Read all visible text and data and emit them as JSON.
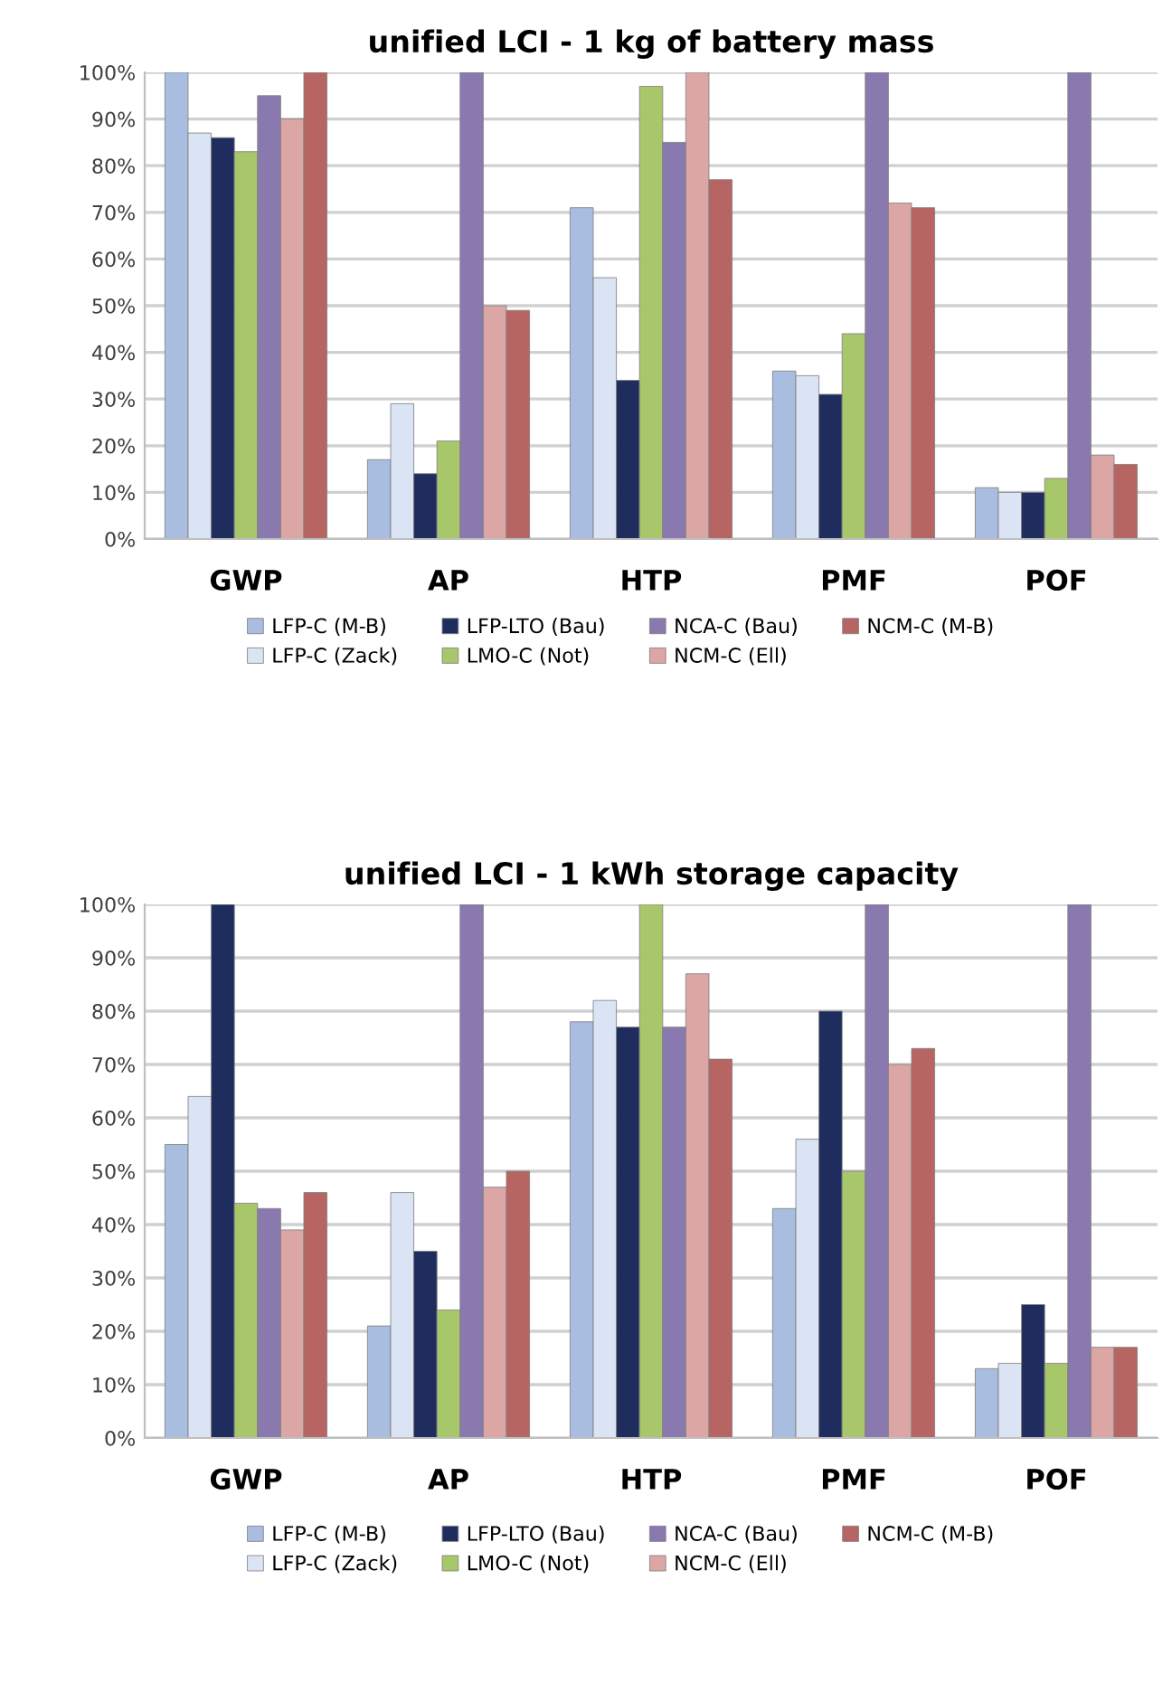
{
  "chart_data": [
    {
      "type": "bar",
      "title": "unified LCI - 1 kg of battery mass",
      "categories": [
        "GWP",
        "AP",
        "HTP",
        "PMF",
        "POF"
      ],
      "series": [
        {
          "name": "LFP-C (M-B)",
          "color": "#a9bde0",
          "values": [
            100,
            17,
            71,
            36,
            11
          ]
        },
        {
          "name": "LFP-C (Zack)",
          "color": "#dbe4f4",
          "values": [
            87,
            29,
            56,
            35,
            10
          ]
        },
        {
          "name": "LFP-LTO (Bau)",
          "color": "#1f2d5e",
          "values": [
            86,
            14,
            34,
            31,
            10
          ]
        },
        {
          "name": "LMO-C (Not)",
          "color": "#a8c66a",
          "values": [
            83,
            21,
            97,
            44,
            13
          ]
        },
        {
          "name": "NCA-C (Bau)",
          "color": "#8a79ae",
          "values": [
            95,
            100,
            85,
            100,
            100
          ]
        },
        {
          "name": "NCM-C (Ell)",
          "color": "#dba6a4",
          "values": [
            90,
            50,
            100,
            72,
            18
          ]
        },
        {
          "name": "NCM-C (M-B)",
          "color": "#b76563",
          "values": [
            100,
            49,
            77,
            71,
            16
          ]
        }
      ],
      "ylim": [
        0,
        100
      ],
      "yticks": [
        {
          "value": 0,
          "label": "0%"
        },
        {
          "value": 10,
          "label": "10%"
        },
        {
          "value": 20,
          "label": "20%"
        },
        {
          "value": 30,
          "label": "30%"
        },
        {
          "value": 40,
          "label": "40%"
        },
        {
          "value": 50,
          "label": "50%"
        },
        {
          "value": 60,
          "label": "60%"
        },
        {
          "value": 70,
          "label": "70%"
        },
        {
          "value": 80,
          "label": "80%"
        },
        {
          "value": 90,
          "label": "90%"
        },
        {
          "value": 100,
          "label": "100%"
        }
      ],
      "grid": "y",
      "legend": "bottom"
    },
    {
      "type": "bar",
      "title": "unified LCI - 1 kWh storage capacity",
      "categories": [
        "GWP",
        "AP",
        "HTP",
        "PMF",
        "POF"
      ],
      "series": [
        {
          "name": "LFP-C (M-B)",
          "color": "#a9bde0",
          "values": [
            55,
            21,
            78,
            43,
            13
          ]
        },
        {
          "name": "LFP-C (Zack)",
          "color": "#dbe4f4",
          "values": [
            64,
            46,
            82,
            56,
            14
          ]
        },
        {
          "name": "LFP-LTO (Bau)",
          "color": "#1f2d5e",
          "values": [
            100,
            35,
            77,
            80,
            25
          ]
        },
        {
          "name": "LMO-C (Not)",
          "color": "#a8c66a",
          "values": [
            44,
            24,
            100,
            50,
            14
          ]
        },
        {
          "name": "NCA-C (Bau)",
          "color": "#8a79ae",
          "values": [
            43,
            100,
            77,
            100,
            100
          ]
        },
        {
          "name": "NCM-C (Ell)",
          "color": "#dba6a4",
          "values": [
            39,
            47,
            87,
            70,
            17
          ]
        },
        {
          "name": "NCM-C (M-B)",
          "color": "#b76563",
          "values": [
            46,
            50,
            71,
            73,
            17
          ]
        }
      ],
      "ylim": [
        0,
        100
      ],
      "yticks": [
        {
          "value": 0,
          "label": "0%"
        },
        {
          "value": 10,
          "label": "10%"
        },
        {
          "value": 20,
          "label": "20%"
        },
        {
          "value": 30,
          "label": "30%"
        },
        {
          "value": 40,
          "label": "40%"
        },
        {
          "value": 50,
          "label": "50%"
        },
        {
          "value": 60,
          "label": "60%"
        },
        {
          "value": 70,
          "label": "70%"
        },
        {
          "value": 80,
          "label": "80%"
        },
        {
          "value": 90,
          "label": "90%"
        },
        {
          "value": 100,
          "label": "100%"
        }
      ],
      "grid": "y",
      "legend": "bottom"
    }
  ]
}
